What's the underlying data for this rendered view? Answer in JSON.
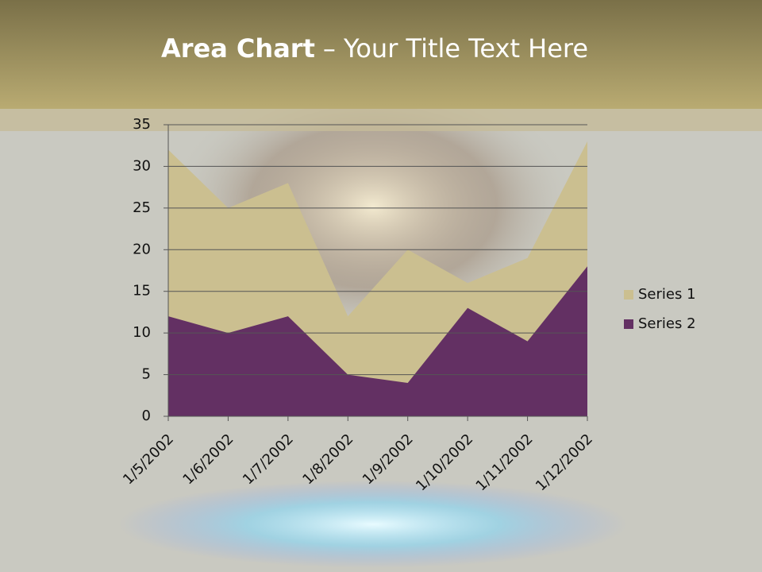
{
  "chart_data": {
    "type": "area",
    "title": "Area Chart",
    "subtitle": "– Your Title Text Here",
    "categories": [
      "1/5/2002",
      "1/6/2002",
      "1/7/2002",
      "1/8/2002",
      "1/9/2002",
      "1/10/2002",
      "1/11/2002",
      "1/12/2002"
    ],
    "series": [
      {
        "name": "Series 1",
        "color": "#cbbf90",
        "values": [
          32,
          25,
          28,
          12,
          20,
          16,
          19,
          33
        ]
      },
      {
        "name": "Series 2",
        "color": "#633063",
        "values": [
          12,
          10,
          12,
          5,
          4,
          13,
          9,
          18
        ]
      }
    ],
    "ylim": [
      0,
      35
    ],
    "yticks": [
      0,
      5,
      10,
      15,
      20,
      25,
      30,
      35
    ],
    "grid": true,
    "legend": "right"
  }
}
